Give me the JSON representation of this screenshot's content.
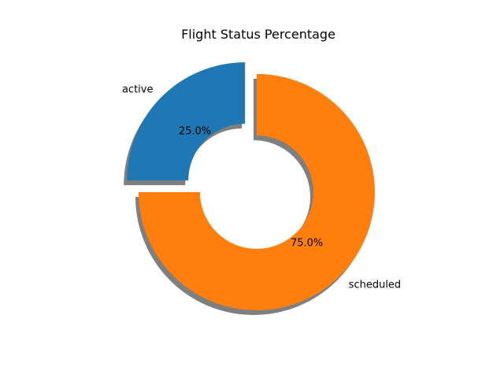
{
  "chart_data": {
    "type": "pie",
    "variant": "donut",
    "title": "Flight Status Percentage",
    "slices": [
      {
        "label": "active",
        "value": 25.0,
        "pct_label": "25.0%",
        "color": "#1f77b4",
        "exploded": true
      },
      {
        "label": "scheduled",
        "value": 75.0,
        "pct_label": "75.0%",
        "color": "#ff7f0e",
        "exploded": false
      }
    ],
    "start_angle_deg": 90,
    "shadow": true,
    "legend": "none",
    "grid": false
  }
}
